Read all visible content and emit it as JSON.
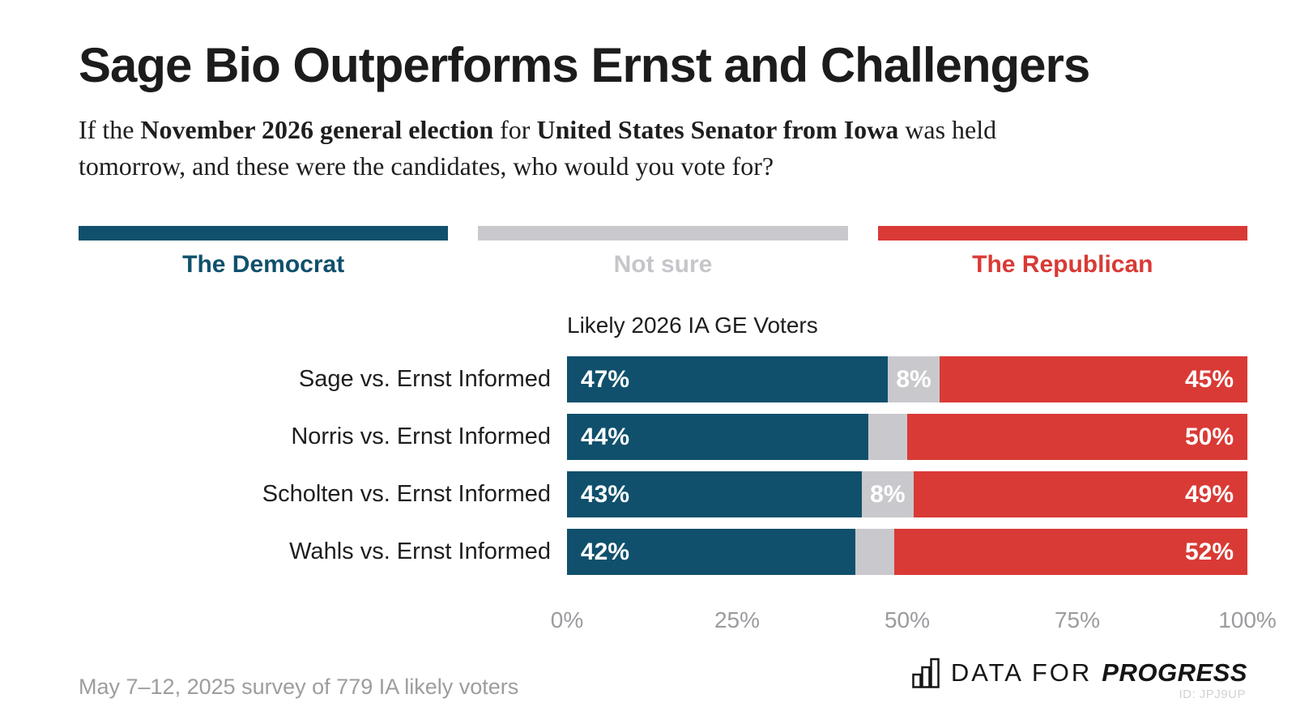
{
  "header": {
    "title": "Sage Bio Outperforms Ernst and Challengers"
  },
  "subtitle": {
    "intro": "If the ",
    "bold_election": "November 2026 general election",
    "mid": " for ",
    "bold_office": "United States Senator from Iowa",
    "tail_line1": " was held",
    "line2": "tomorrow, and these were the candidates, who would you vote for?"
  },
  "legend": {
    "items": [
      {
        "key": "democrat",
        "label": "The Democrat",
        "color": "#10506c",
        "text_color": "#10506c"
      },
      {
        "key": "not-sure",
        "label": "Not sure",
        "color": "#c9c9cd",
        "text_color": "#c6c6ca"
      },
      {
        "key": "republican",
        "label": "The Republican",
        "color": "#d93a35",
        "text_color": "#d93a35"
      }
    ]
  },
  "chart_data": {
    "type": "bar",
    "stacked": true,
    "orientation": "horizontal",
    "title": "Likely 2026 IA GE Voters",
    "categories": [
      "Sage vs. Ernst Informed",
      "Norris vs. Ernst Informed",
      "Scholten vs. Ernst Informed",
      "Wahls vs. Ernst Informed"
    ],
    "series": [
      {
        "key": "democrat",
        "name": "The Democrat",
        "color": "#10506c",
        "values": [
          47,
          44,
          43,
          42
        ],
        "labels": [
          "47%",
          "44%",
          "43%",
          "42%"
        ]
      },
      {
        "key": "not-sure",
        "name": "Not sure",
        "color": "#c9c9cd",
        "values": [
          8,
          6,
          8,
          6
        ],
        "labels": [
          "8%",
          "",
          "8%",
          ""
        ]
      },
      {
        "key": "republican",
        "name": "The Republican",
        "color": "#d93a35",
        "values": [
          45,
          50,
          49,
          52
        ],
        "labels": [
          "45%",
          "50%",
          "49%",
          "52%"
        ]
      }
    ],
    "x_ticks": [
      "0%",
      "25%",
      "50%",
      "75%",
      "100%"
    ],
    "xlim": [
      0,
      100
    ],
    "legend_position": "top",
    "grid": false
  },
  "footer": {
    "note": "May 7–12, 2025 survey of 779 IA likely voters",
    "logo_data_for": "DATA FOR",
    "logo_progress": "PROGRESS",
    "chart_id": "ID: JPJ9UP"
  }
}
